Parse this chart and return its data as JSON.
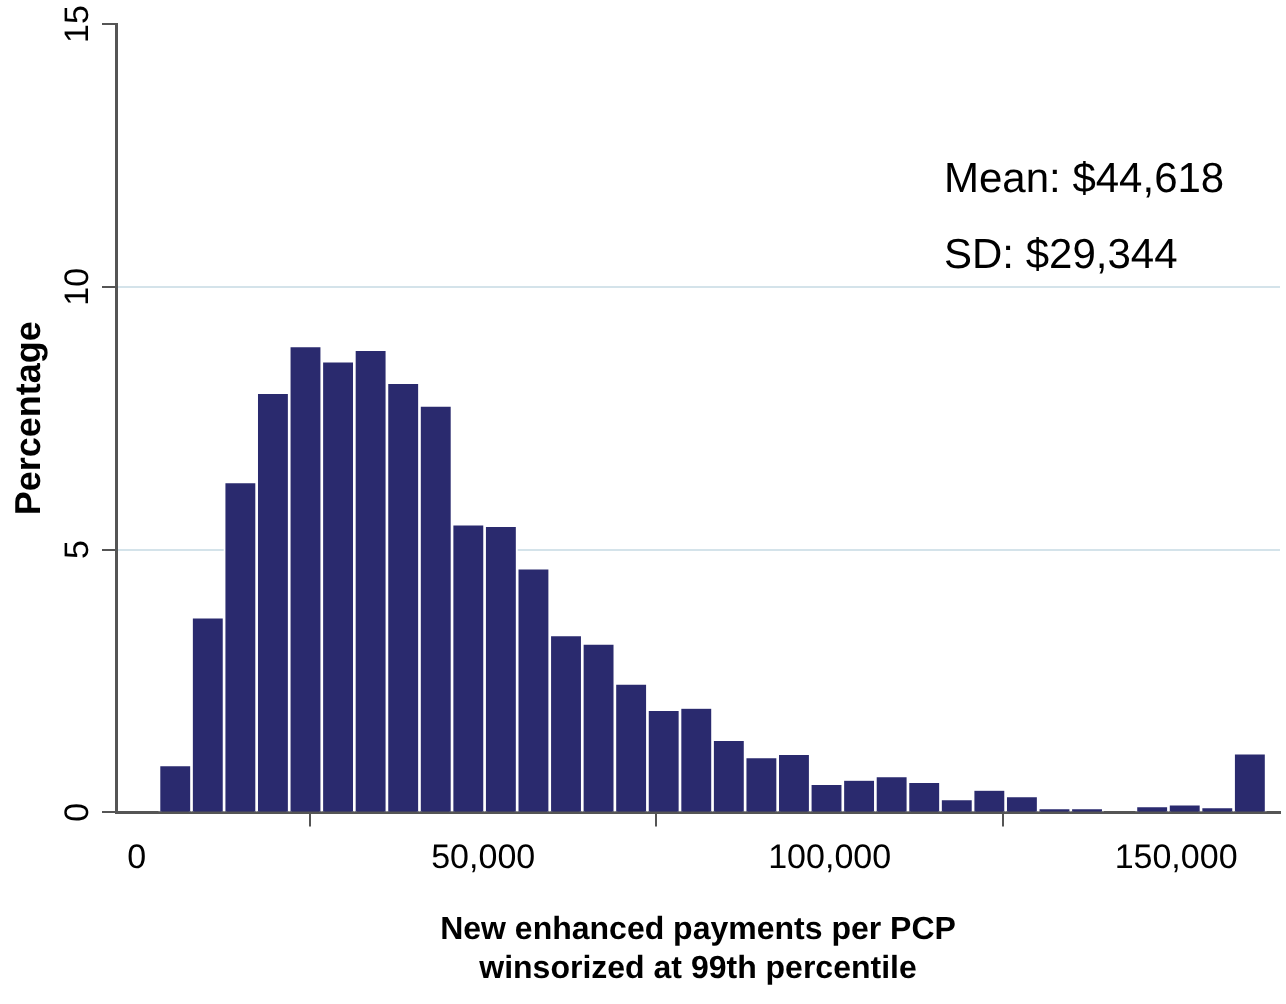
{
  "chart_data": {
    "type": "histogram",
    "xlabel": "New enhanced payments per PCP\nwinsorized at 99th percentile",
    "ylabel": "Percentage",
    "bins": [
      3200,
      7900,
      12600,
      17300,
      22000,
      26700,
      31400,
      36100,
      40800,
      45500,
      50200,
      54900,
      59600,
      64300,
      69000,
      73700,
      78400,
      83100,
      87800,
      92500,
      97200,
      101900,
      106600,
      111300,
      116000,
      120700,
      125400,
      130100,
      134800,
      139500,
      144200,
      148900,
      153600,
      158300,
      163000
    ],
    "values": [
      0.88,
      3.69,
      6.26,
      7.96,
      8.85,
      8.56,
      8.78,
      8.15,
      7.72,
      5.46,
      5.43,
      4.62,
      3.35,
      3.19,
      2.43,
      1.93,
      1.97,
      1.36,
      1.03,
      1.09,
      0.52,
      0.6,
      0.67,
      0.56,
      0.23,
      0.41,
      0.29,
      0.06,
      0.06,
      0,
      0.1,
      0.13,
      0.08,
      1.1
    ],
    "color": "#2a2a6e",
    "xlim": [
      -3000,
      165000
    ],
    "xticks": [
      0,
      {
        "value": 50000,
        "label": "50,000"
      },
      {
        "value": 100000,
        "label": "100,000"
      },
      {
        "value": 150000,
        "label": "150,000"
      }
    ],
    "ylim": [
      0,
      15
    ],
    "yticks": [
      0,
      5,
      10,
      15
    ],
    "grid": "y",
    "annotations": [
      "Mean: $44,618",
      "SD: $29,344"
    ]
  }
}
